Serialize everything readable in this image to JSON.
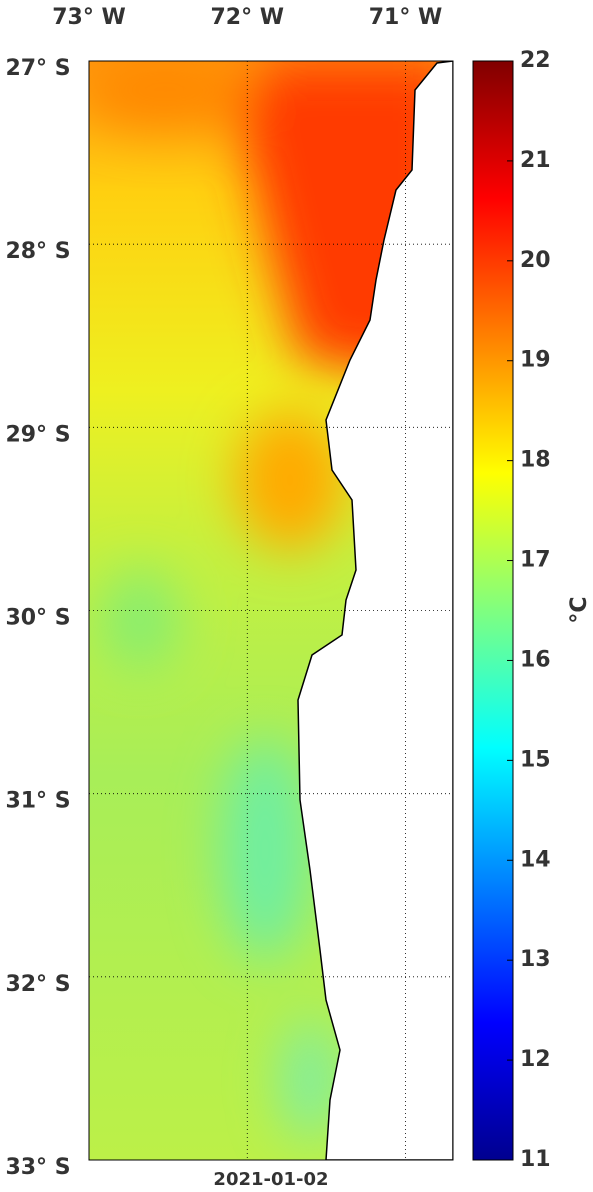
{
  "map": {
    "lonlim": [
      -73,
      -70.7
    ],
    "latlim": [
      -27,
      -33
    ],
    "lon_ticks": [
      {
        "value": -73,
        "label": "73° W"
      },
      {
        "value": -72,
        "label": "72° W"
      },
      {
        "value": -71,
        "label": "71° W"
      }
    ],
    "lat_ticks": [
      {
        "value": -27,
        "label": "27° S"
      },
      {
        "value": -28,
        "label": "28° S"
      },
      {
        "value": -29,
        "label": "29° S"
      },
      {
        "value": -30,
        "label": "30° S"
      },
      {
        "value": -31,
        "label": "31° S"
      },
      {
        "value": -32,
        "label": "32° S"
      },
      {
        "value": -33,
        "label": "33° S"
      }
    ],
    "date": "2021-01-02"
  },
  "colorbar": {
    "colormap": "jet",
    "lim": [
      11,
      22
    ],
    "ticks": [
      11,
      12,
      13,
      14,
      15,
      16,
      17,
      18,
      19,
      20,
      21,
      22
    ],
    "unit": "°C"
  }
}
